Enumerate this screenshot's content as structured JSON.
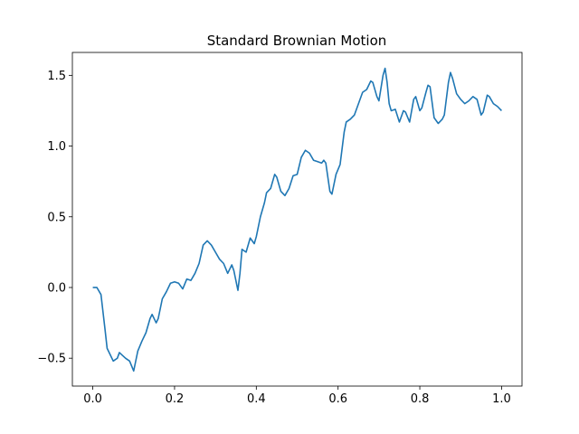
{
  "chart_data": {
    "type": "line",
    "title": "Standard Brownian Motion",
    "x": [
      0,
      0.01,
      0.02,
      0.03,
      0.035,
      0.05,
      0.06,
      0.065,
      0.08,
      0.09,
      0.1,
      0.11,
      0.12,
      0.13,
      0.14,
      0.145,
      0.155,
      0.16,
      0.17,
      0.18,
      0.19,
      0.2,
      0.21,
      0.22,
      0.23,
      0.24,
      0.25,
      0.26,
      0.27,
      0.28,
      0.29,
      0.3,
      0.31,
      0.32,
      0.33,
      0.34,
      0.345,
      0.355,
      0.36,
      0.365,
      0.375,
      0.385,
      0.395,
      0.4,
      0.41,
      0.42,
      0.425,
      0.435,
      0.445,
      0.45,
      0.46,
      0.47,
      0.48,
      0.49,
      0.5,
      0.51,
      0.52,
      0.53,
      0.54,
      0.55,
      0.56,
      0.565,
      0.57,
      0.58,
      0.585,
      0.595,
      0.605,
      0.615,
      0.62,
      0.63,
      0.64,
      0.65,
      0.66,
      0.67,
      0.68,
      0.685,
      0.695,
      0.7,
      0.71,
      0.715,
      0.72,
      0.725,
      0.73,
      0.74,
      0.75,
      0.76,
      0.765,
      0.775,
      0.785,
      0.79,
      0.8,
      0.805,
      0.815,
      0.82,
      0.825,
      0.835,
      0.845,
      0.855,
      0.86,
      0.87,
      0.875,
      0.88,
      0.89,
      0.9,
      0.91,
      0.92,
      0.93,
      0.94,
      0.95,
      0.955,
      0.965,
      0.97,
      0.98,
      0.99,
      1.0
    ],
    "series": [
      {
        "color": "#1f77b4",
        "values": [
          0,
          0,
          -0.05,
          -0.3,
          -0.43,
          -0.52,
          -0.5,
          -0.46,
          -0.5,
          -0.52,
          -0.59,
          -0.45,
          -0.38,
          -0.32,
          -0.22,
          -0.19,
          -0.25,
          -0.22,
          -0.08,
          -0.03,
          0.03,
          0.04,
          0.03,
          -0.01,
          0.06,
          0.05,
          0.1,
          0.17,
          0.3,
          0.33,
          0.3,
          0.25,
          0.2,
          0.17,
          0.1,
          0.16,
          0.12,
          -0.02,
          0.1,
          0.27,
          0.25,
          0.35,
          0.31,
          0.36,
          0.5,
          0.6,
          0.67,
          0.7,
          0.8,
          0.78,
          0.68,
          0.65,
          0.7,
          0.79,
          0.8,
          0.92,
          0.97,
          0.95,
          0.9,
          0.89,
          0.88,
          0.9,
          0.88,
          0.68,
          0.66,
          0.8,
          0.87,
          1.1,
          1.17,
          1.19,
          1.22,
          1.3,
          1.38,
          1.4,
          1.46,
          1.45,
          1.35,
          1.32,
          1.5,
          1.55,
          1.45,
          1.3,
          1.25,
          1.26,
          1.17,
          1.25,
          1.24,
          1.17,
          1.33,
          1.35,
          1.25,
          1.27,
          1.38,
          1.43,
          1.42,
          1.2,
          1.16,
          1.19,
          1.22,
          1.45,
          1.52,
          1.48,
          1.37,
          1.33,
          1.3,
          1.32,
          1.35,
          1.33,
          1.22,
          1.24,
          1.36,
          1.35,
          1.3,
          1.28,
          1.25
        ]
      }
    ],
    "xlim": [
      -0.05,
      1.05
    ],
    "ylim": [
      -0.697,
      1.662
    ],
    "xticks": [
      {
        "value": 0,
        "label": "0.0"
      },
      0.2,
      0.4,
      0.6,
      0.8,
      {
        "value": 1,
        "label": "1.0"
      }
    ],
    "yticks": [
      {
        "value": -0.5,
        "label": "−0.5"
      },
      {
        "value": 0,
        "label": "0.0"
      },
      0.5,
      {
        "value": 1,
        "label": "1.0"
      },
      1.5
    ]
  }
}
